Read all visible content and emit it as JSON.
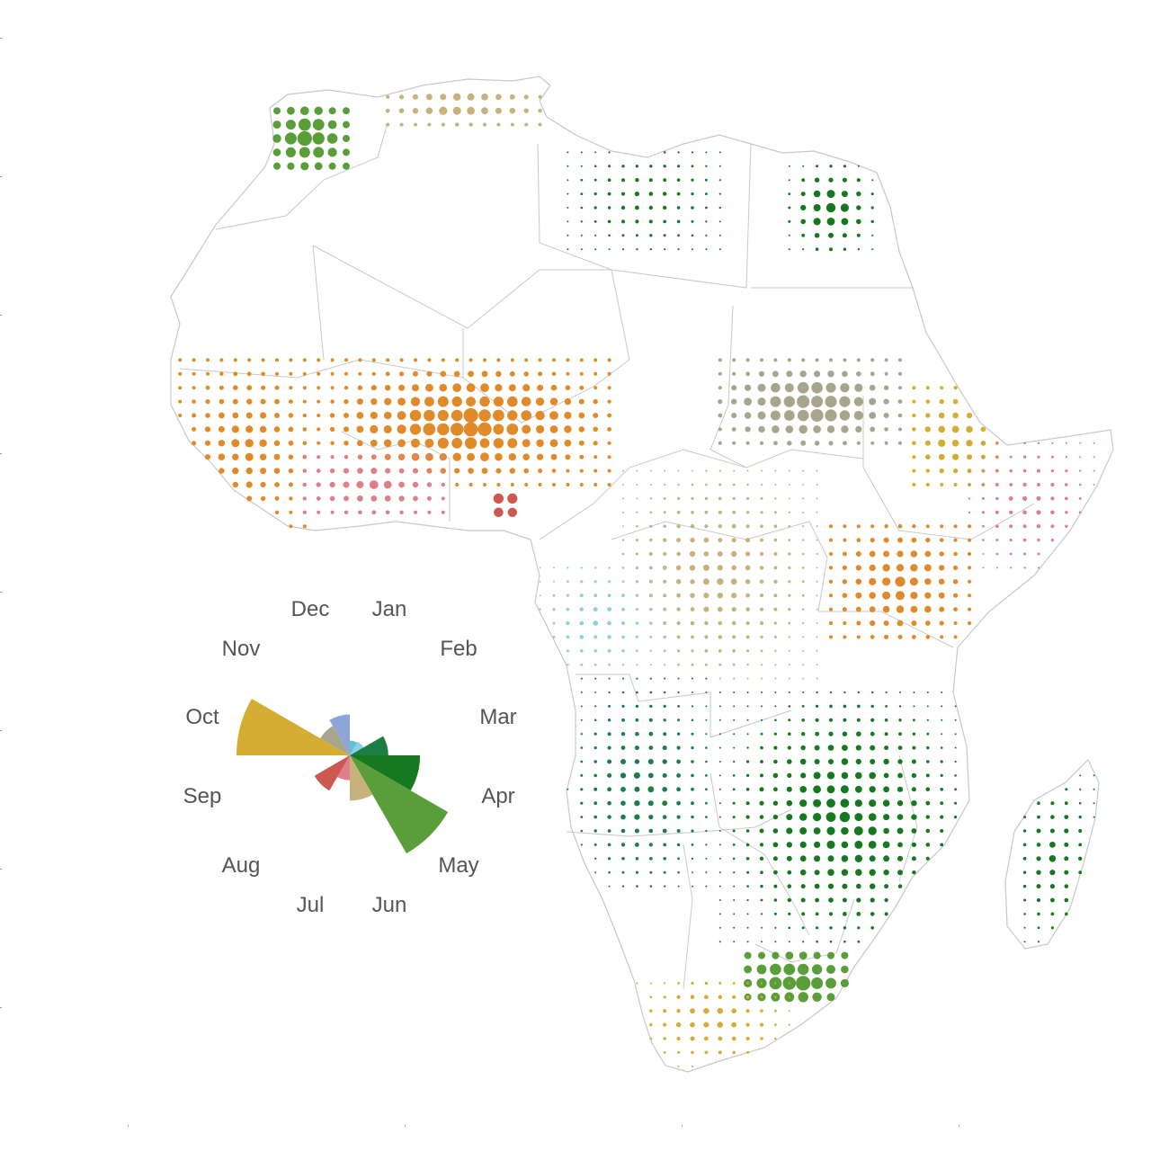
{
  "colors": {
    "land_fill": "#ffffff",
    "border": "#c8c8c8",
    "label": "#555555"
  },
  "month_colors": {
    "Jan": "#5fc0d6",
    "Feb": "#8ccfe6",
    "Mar": "#1b7f43",
    "Apr": "#16791f",
    "May": "#5a9e3a",
    "Jun": "#c8b27c",
    "Jul": "#df7f87",
    "Aug": "#cd5850",
    "Sep": "#e08a2a",
    "Oct": "#d4ad32",
    "Nov": "#a9a58c",
    "Dec": "#8ea5d8"
  },
  "chart_data": {
    "type": "polar-bar",
    "months": [
      "Jan",
      "Feb",
      "Mar",
      "Apr",
      "May",
      "Jun",
      "Jul",
      "Aug",
      "Sep",
      "Oct",
      "Nov",
      "Dec"
    ],
    "values": [
      0.13,
      0.14,
      0.34,
      0.62,
      1.0,
      0.4,
      0.22,
      0.36,
      0.02,
      1.0,
      0.3,
      0.36
    ],
    "max_value": 1.0
  },
  "map_regions": [
    {
      "name": "maghreb-green",
      "month": "May",
      "x": [
        300,
        385
      ],
      "y": [
        115,
        190
      ],
      "size": [
        4,
        9
      ]
    },
    {
      "name": "algeria-tunisia-coast",
      "month": "Jun",
      "x": [
        420,
        610
      ],
      "y": [
        95,
        140
      ],
      "size": [
        2,
        6
      ]
    },
    {
      "name": "libya-scatter",
      "month": "Apr",
      "x": [
        630,
        810
      ],
      "y": [
        155,
        285
      ],
      "size": [
        1,
        3
      ]
    },
    {
      "name": "egypt-nile",
      "month": "Apr",
      "x": [
        870,
        980
      ],
      "y": [
        175,
        290
      ],
      "size": [
        1,
        6
      ]
    },
    {
      "name": "sahel-west",
      "month": "Sep",
      "x": [
        195,
        350
      ],
      "y": [
        400,
        590
      ],
      "size": [
        2,
        5
      ]
    },
    {
      "name": "sahel-central",
      "month": "Sep",
      "x": [
        350,
        690
      ],
      "y": [
        400,
        540
      ],
      "size": [
        2,
        9
      ]
    },
    {
      "name": "guinea-coast",
      "month": "Jul",
      "x": [
        330,
        500
      ],
      "y": [
        505,
        575
      ],
      "size": [
        2,
        5
      ]
    },
    {
      "name": "nigeria-south",
      "month": "Aug",
      "x": [
        540,
        580
      ],
      "y": [
        540,
        580
      ],
      "size": [
        4,
        8
      ]
    },
    {
      "name": "sudan-east",
      "month": "Nov",
      "x": [
        790,
        1010
      ],
      "y": [
        400,
        500
      ],
      "size": [
        2,
        9
      ]
    },
    {
      "name": "ethiopia",
      "month": "Oct",
      "x": [
        1010,
        1110
      ],
      "y": [
        430,
        540
      ],
      "size": [
        2,
        5
      ]
    },
    {
      "name": "somalia-kenya",
      "month": "Jul",
      "x": [
        1070,
        1220
      ],
      "y": [
        480,
        640
      ],
      "size": [
        1,
        3
      ]
    },
    {
      "name": "central-africa",
      "month": "Jun",
      "x": [
        680,
        910
      ],
      "y": [
        520,
        760
      ],
      "size": [
        1,
        4
      ]
    },
    {
      "name": "congo-coast",
      "month": "Feb",
      "x": [
        590,
        740
      ],
      "y": [
        620,
        760
      ],
      "size": [
        1,
        3
      ]
    },
    {
      "name": "east-africa",
      "month": "Sep",
      "x": [
        920,
        1080
      ],
      "y": [
        580,
        720
      ],
      "size": [
        2,
        6
      ]
    },
    {
      "name": "angola-zambia",
      "month": "Mar",
      "x": [
        630,
        800
      ],
      "y": [
        750,
        1000
      ],
      "size": [
        1,
        4
      ]
    },
    {
      "name": "mozambique-zambia",
      "month": "Apr",
      "x": [
        800,
        1080
      ],
      "y": [
        760,
        1060
      ],
      "size": [
        1,
        6
      ]
    },
    {
      "name": "madagascar",
      "month": "Apr",
      "x": [
        1125,
        1220
      ],
      "y": [
        850,
        1060
      ],
      "size": [
        1,
        4
      ]
    },
    {
      "name": "south-africa-high",
      "month": "May",
      "x": [
        820,
        950
      ],
      "y": [
        1060,
        1120
      ],
      "size": [
        4,
        9
      ]
    },
    {
      "name": "south-africa-cape",
      "month": "Oct",
      "x": [
        700,
        880
      ],
      "y": [
        1080,
        1190
      ],
      "size": [
        1,
        4
      ]
    }
  ]
}
